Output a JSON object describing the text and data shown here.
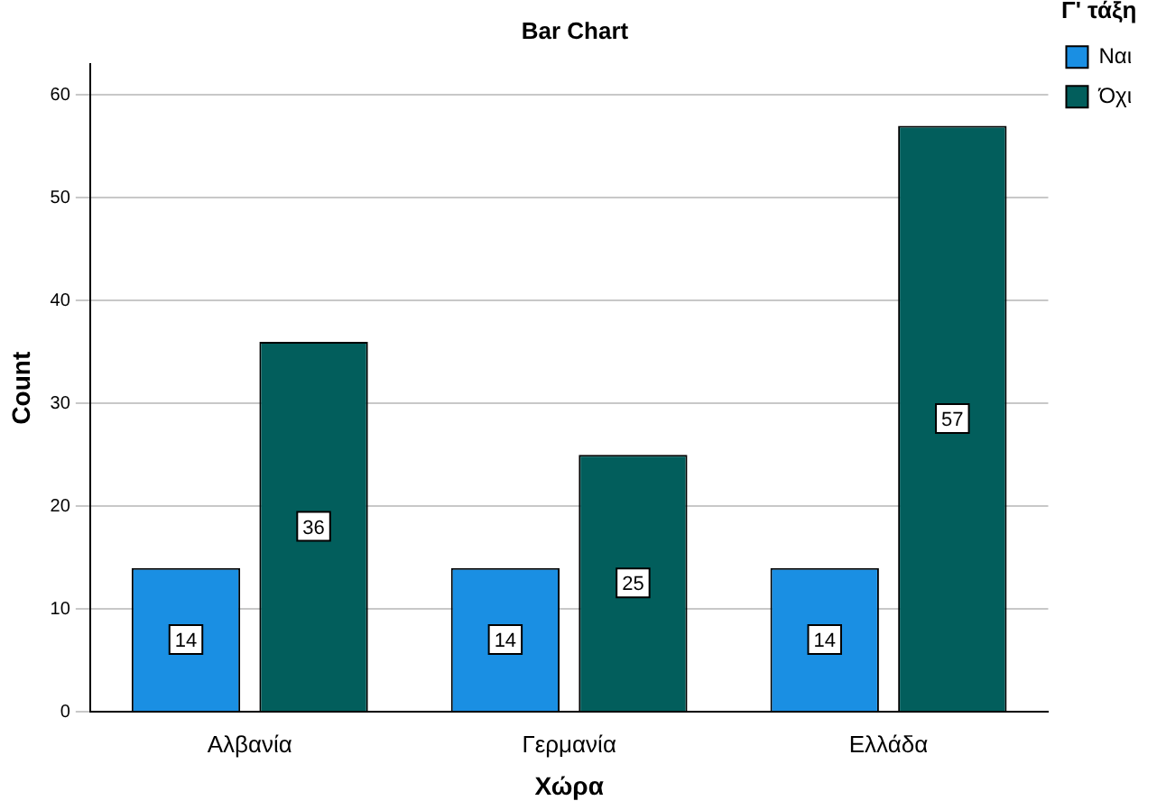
{
  "chart_data": {
    "type": "bar",
    "title": "Bar Chart",
    "xlabel": "Χώρα",
    "ylabel": "Count",
    "legend_title": "Γ' τάξη",
    "categories": [
      "Αλβανία",
      "Γερμανία",
      "Ελλάδα"
    ],
    "series": [
      {
        "name": "Ναι",
        "color": "#1a8fe3",
        "values": [
          14,
          14,
          14
        ]
      },
      {
        "name": "Όχι",
        "color": "#025e5c",
        "values": [
          36,
          25,
          57
        ]
      }
    ],
    "ylim": [
      0,
      63
    ],
    "yticks": [
      0,
      10,
      20,
      30,
      40,
      50,
      60
    ],
    "grid": "y",
    "legend": "top right",
    "data_labels": true
  }
}
